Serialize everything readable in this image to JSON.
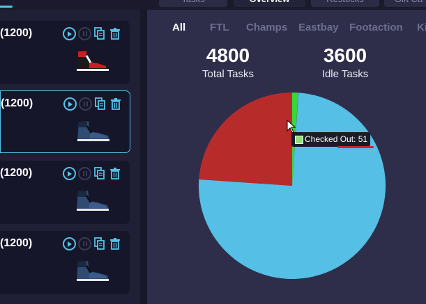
{
  "top_tabs": [
    {
      "label": "Tasks",
      "active": false
    },
    {
      "label": "Overview",
      "active": true
    },
    {
      "label": "Restocks",
      "active": false
    },
    {
      "label": "Gift Ca",
      "active": false
    }
  ],
  "tasks": [
    {
      "title": "(1200)",
      "selected": false,
      "shoe": "red-black-sneaker"
    },
    {
      "title": "(1200)",
      "selected": true,
      "shoe": "blue-sneaker"
    },
    {
      "title": "(1200)",
      "selected": false,
      "shoe": "blue-sneaker"
    },
    {
      "title": "(1200)",
      "selected": false,
      "shoe": "blue-sneaker"
    }
  ],
  "filters": [
    {
      "label": "All",
      "active": true
    },
    {
      "label": "FTL",
      "active": false
    },
    {
      "label": "Champs",
      "active": false
    },
    {
      "label": "Eastbay",
      "active": false
    },
    {
      "label": "Footaction",
      "active": false
    },
    {
      "label": "Ki",
      "active": false
    }
  ],
  "stats": {
    "total_value": "4800",
    "total_label": "Total Tasks",
    "idle_value": "3600",
    "idle_label": "Idle Tasks"
  },
  "chart_data": {
    "type": "pie",
    "slices": [
      {
        "label": "Checked Out",
        "value": 51,
        "color": "#39d63b"
      },
      {
        "label": "",
        "value": 1,
        "color": "#1c1c30"
      },
      {
        "label": "",
        "value": 3600,
        "color": "#55bfe6"
      },
      {
        "label": "",
        "value": 1148,
        "color": "#b82b2b"
      }
    ],
    "tooltip": "Checked Out: 51"
  },
  "colors": {
    "accent": "#57c2e8",
    "panel_bg": "#2e2e4b",
    "card_bg": "#16162a"
  }
}
